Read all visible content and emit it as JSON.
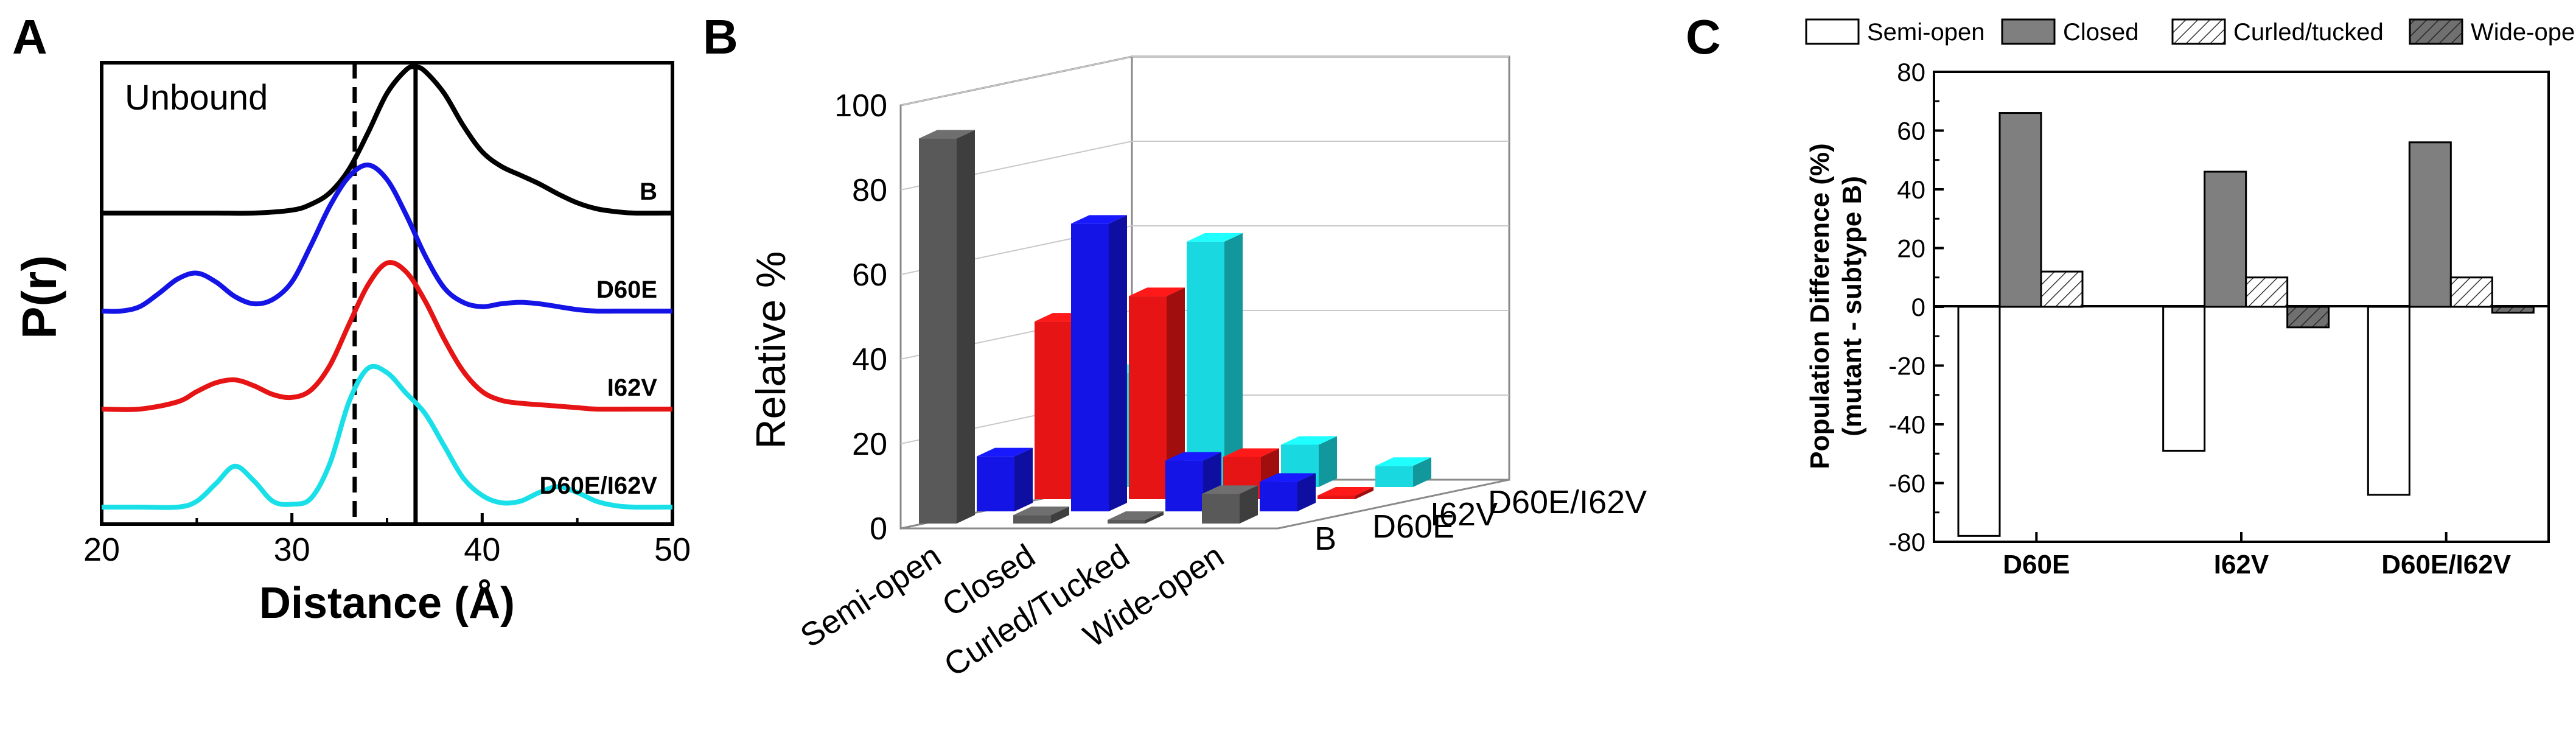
{
  "chart_data": [
    {
      "panel": "A",
      "type": "line",
      "title": "Unbound",
      "xlabel": "Distance (Å)",
      "ylabel": "P(r)",
      "xlim": [
        20,
        50
      ],
      "xticks": [
        20,
        30,
        40,
        50
      ],
      "reference_lines": [
        {
          "x": 33.3,
          "style": "dashed"
        },
        {
          "x": 36.5,
          "style": "solid"
        }
      ],
      "series": [
        {
          "name": "B",
          "color": "#000000",
          "offset": 3,
          "x": [
            20,
            22,
            24,
            26,
            28,
            30,
            31,
            32,
            33,
            34,
            35,
            36,
            36.5,
            37,
            38,
            39,
            40,
            41,
            42,
            43,
            44,
            45,
            46,
            47,
            48,
            50
          ],
          "y": [
            0,
            0,
            0,
            0,
            0,
            0.02,
            0.06,
            0.14,
            0.3,
            0.55,
            0.82,
            0.98,
            1.0,
            0.97,
            0.82,
            0.6,
            0.42,
            0.32,
            0.26,
            0.2,
            0.13,
            0.07,
            0.03,
            0.01,
            0,
            0
          ]
        },
        {
          "name": "D60E",
          "color": "#1414e6",
          "offset": 2,
          "x": [
            20,
            21,
            22,
            23,
            24,
            25,
            26,
            27,
            28,
            29,
            30,
            31,
            32,
            33,
            34,
            35,
            36,
            37,
            38,
            39,
            40,
            41,
            42,
            43,
            44,
            45,
            46,
            47,
            48,
            50
          ],
          "y": [
            0,
            0,
            0.03,
            0.12,
            0.22,
            0.26,
            0.2,
            0.1,
            0.05,
            0.08,
            0.2,
            0.45,
            0.72,
            0.92,
            1.0,
            0.9,
            0.66,
            0.38,
            0.16,
            0.06,
            0.03,
            0.05,
            0.06,
            0.05,
            0.03,
            0.01,
            0,
            0,
            0,
            0
          ]
        },
        {
          "name": "I62V",
          "color": "#e61414",
          "offset": 1,
          "x": [
            20,
            22,
            24,
            25,
            26,
            27,
            28,
            29,
            30,
            31,
            32,
            33,
            34,
            35,
            36,
            37,
            38,
            39,
            40,
            41,
            42,
            43,
            44,
            45,
            46,
            48,
            50
          ],
          "y": [
            0,
            0,
            0.05,
            0.12,
            0.18,
            0.2,
            0.16,
            0.1,
            0.08,
            0.13,
            0.3,
            0.58,
            0.85,
            1.0,
            0.94,
            0.74,
            0.48,
            0.26,
            0.12,
            0.06,
            0.04,
            0.03,
            0.02,
            0.01,
            0,
            0,
            0
          ]
        },
        {
          "name": "D60E/I62V",
          "color": "#19e0e8",
          "offset": 0,
          "x": [
            20,
            22,
            24,
            25,
            26,
            27,
            28,
            29,
            30,
            31,
            32,
            33,
            34,
            35,
            36,
            37,
            38,
            39,
            40,
            41,
            42,
            43,
            44,
            45,
            46,
            47,
            48,
            50
          ],
          "y": [
            0,
            0,
            0,
            0.04,
            0.16,
            0.28,
            0.18,
            0.04,
            0.02,
            0.06,
            0.3,
            0.72,
            0.95,
            0.92,
            0.78,
            0.64,
            0.42,
            0.2,
            0.08,
            0.03,
            0.04,
            0.1,
            0.14,
            0.1,
            0.04,
            0.01,
            0,
            0
          ]
        }
      ]
    },
    {
      "panel": "B",
      "type": "bar",
      "ylabel": "Relative %",
      "ylim": [
        0,
        100
      ],
      "yticks": [
        0,
        20,
        40,
        60,
        80,
        100
      ],
      "categories": [
        "Semi-open",
        "Closed",
        "Curled/Tucked",
        "Wide-open"
      ],
      "series": [
        {
          "name": "B",
          "color": "#595959",
          "values": [
            91,
            2,
            0,
            7
          ]
        },
        {
          "name": "D60E",
          "color": "#1414e6",
          "values": [
            13,
            68,
            12,
            7
          ]
        },
        {
          "name": "I62V",
          "color": "#e61414",
          "values": [
            42,
            48,
            10,
            0
          ]
        },
        {
          "name": "D60E/I62V",
          "color": "#19d8e0",
          "values": [
            27,
            58,
            10,
            5
          ]
        }
      ]
    },
    {
      "panel": "C",
      "type": "bar",
      "xlabel": "",
      "ylabel": "Population Difference (%)\n(mutant - subtype B)",
      "ylim": [
        -80,
        80
      ],
      "yticks": [
        -80,
        -60,
        -40,
        -20,
        0,
        20,
        40,
        60,
        80
      ],
      "categories": [
        "D60E",
        "I62V",
        "D60E/I62V"
      ],
      "legend_position": "top",
      "series": [
        {
          "name": "Semi-open",
          "fill": "white",
          "values": [
            -78,
            -49,
            -64
          ]
        },
        {
          "name": "Closed",
          "fill": "gray",
          "values": [
            66,
            46,
            56
          ]
        },
        {
          "name": "Curled/tucked",
          "fill": "hatch",
          "values": [
            12,
            10,
            10
          ]
        },
        {
          "name": "Wide-open",
          "fill": "darkhatch",
          "values": [
            0,
            -7,
            -2
          ]
        }
      ]
    }
  ],
  "panels": {
    "a": {
      "letter": "A",
      "ylabel": "P(r)",
      "xlabel": "Distance (Å)",
      "title": "Unbound",
      "series_labels": [
        "B",
        "D60E",
        "I62V",
        "D60E/I62V"
      ]
    },
    "b": {
      "letter": "B",
      "ylabel": "Relative %",
      "categories": [
        "Semi-open",
        "Closed",
        "Curled/Tucked",
        "Wide-open"
      ],
      "series_labels": [
        "B",
        "D60E",
        "I62V",
        "D60E/I62V"
      ]
    },
    "c": {
      "letter": "C",
      "ylabel_line1": "Population Difference (%)",
      "ylabel_line2": "(mutant - subtype B)",
      "legend": [
        "Semi-open",
        "Closed",
        "Curled/tucked",
        "Wide-open"
      ],
      "categories": [
        "D60E",
        "I62V",
        "D60E/I62V"
      ]
    }
  }
}
